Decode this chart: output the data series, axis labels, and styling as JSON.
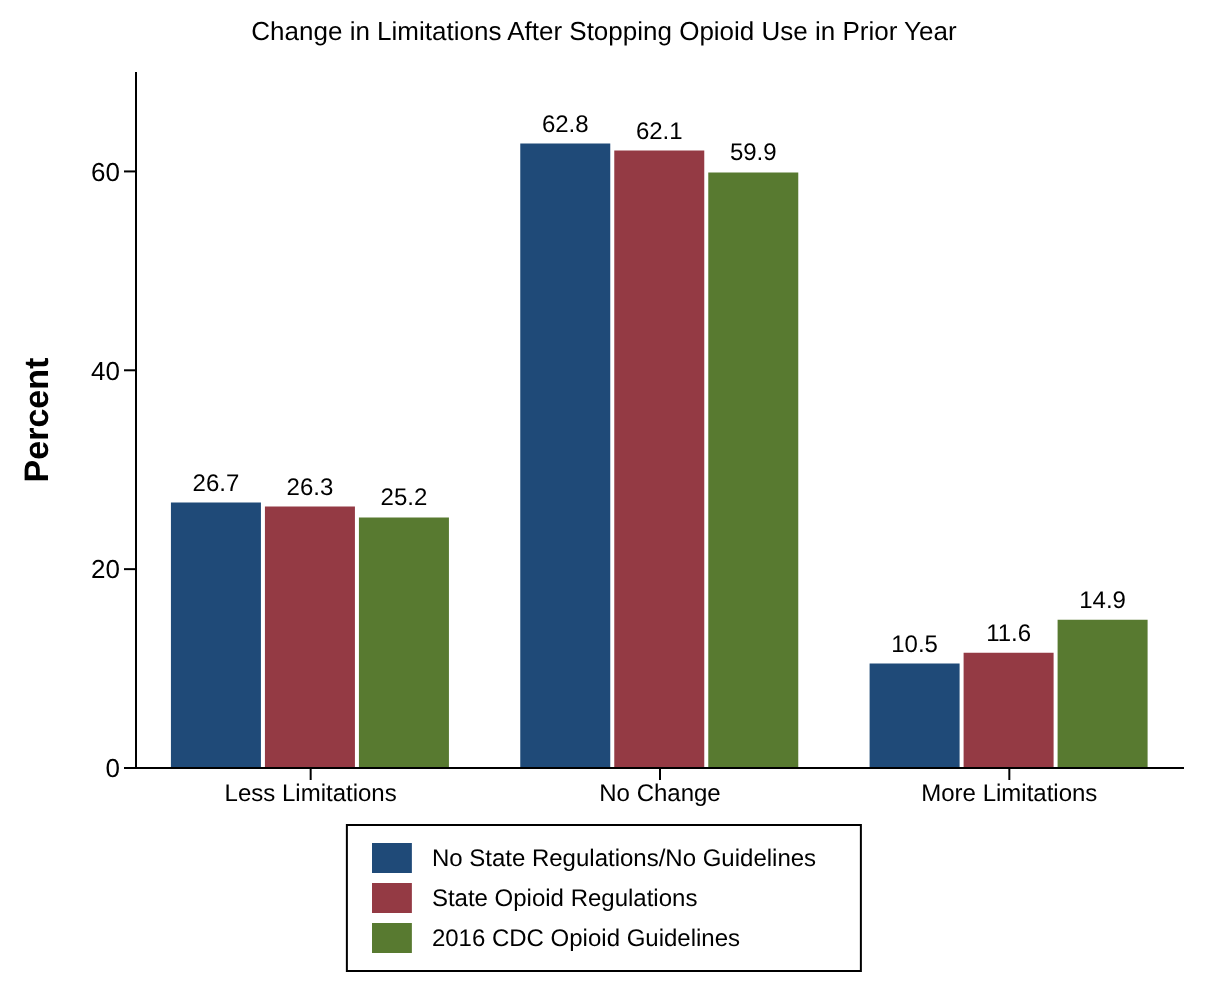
{
  "chart_data": {
    "type": "bar",
    "title": "Change in Limitations After Stopping Opioid Use in Prior Year",
    "ylabel": "Percent",
    "categories": [
      "Less Limitations",
      "No Change",
      "More Limitations"
    ],
    "series": [
      {
        "name": "No State Regulations/No Guidelines",
        "color": "#1f4a78",
        "values": [
          26.7,
          62.8,
          10.5
        ]
      },
      {
        "name": "State Opioid Regulations",
        "color": "#943a44",
        "values": [
          26.3,
          62.1,
          11.6
        ]
      },
      {
        "name": "2016 CDC Opioid Guidelines",
        "color": "#587a30",
        "values": [
          25.2,
          59.9,
          14.9
        ]
      }
    ],
    "ylim": [
      0,
      70
    ],
    "yticks": [
      0,
      20,
      40,
      60
    ],
    "grid": false,
    "legend": "bottom",
    "data_labels": true
  }
}
